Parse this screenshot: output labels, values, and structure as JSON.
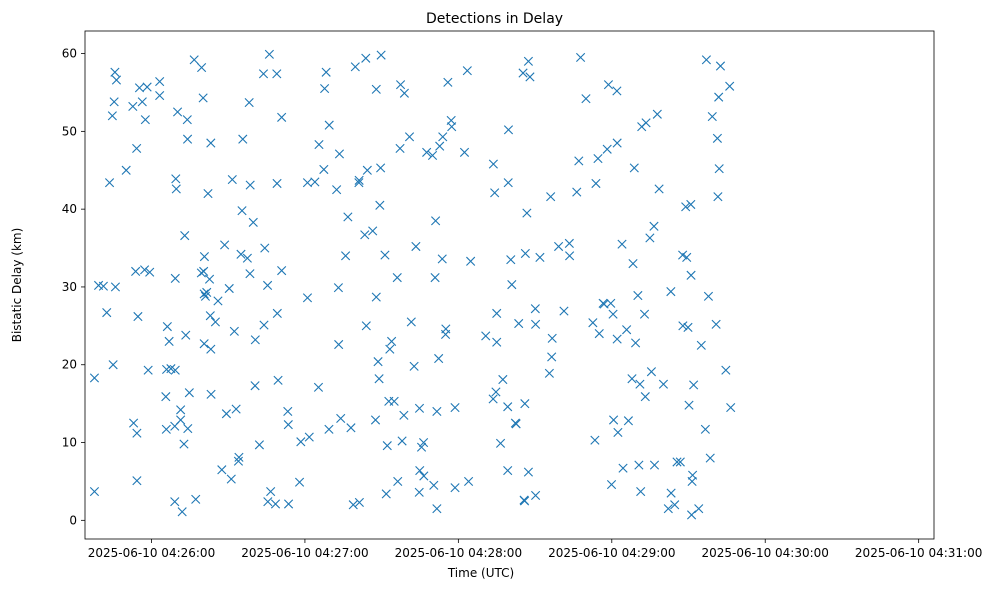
{
  "chart_data": {
    "type": "scatter",
    "title": "Detections in Delay",
    "xlabel": "Time (UTC)",
    "ylabel": "Bistatic Delay (km)",
    "xlim_seconds": [
      -26,
      306
    ],
    "ylim": [
      -2.4,
      62.9
    ],
    "grid": false,
    "legend": "none",
    "marker": "x",
    "series_color": "#1f77b4",
    "x_ticks": [
      {
        "t": 0,
        "label": "2025-06-10 04:26:00"
      },
      {
        "t": 60,
        "label": "2025-06-10 04:27:00"
      },
      {
        "t": 120,
        "label": "2025-06-10 04:28:00"
      },
      {
        "t": 180,
        "label": "2025-06-10 04:29:00"
      },
      {
        "t": 240,
        "label": "2025-06-10 04:30:00"
      },
      {
        "t": 300,
        "label": "2025-06-10 04:31:00"
      }
    ],
    "y_ticks": [
      0,
      10,
      20,
      30,
      40,
      50,
      60
    ],
    "x_unit": "seconds after 2025-06-10 04:26:00 UTC",
    "points": [
      [
        -22.3,
        18.3
      ],
      [
        -22.3,
        3.7
      ],
      [
        -20.7,
        30.2
      ],
      [
        -18.8,
        30.1
      ],
      [
        -17.5,
        26.7
      ],
      [
        -16.4,
        43.4
      ],
      [
        -15.3,
        52.0
      ],
      [
        -15.0,
        20.0
      ],
      [
        -14.6,
        53.8
      ],
      [
        -14.3,
        57.6
      ],
      [
        -14.1,
        30.0
      ],
      [
        -13.7,
        56.6
      ],
      [
        -9.9,
        45.0
      ],
      [
        -7.3,
        53.2
      ],
      [
        -7.0,
        12.5
      ],
      [
        -6.2,
        32.0
      ],
      [
        -5.8,
        47.8
      ],
      [
        -5.7,
        11.2
      ],
      [
        -5.7,
        5.1
      ],
      [
        -5.3,
        26.2
      ],
      [
        -4.7,
        55.6
      ],
      [
        -3.6,
        53.8
      ],
      [
        -2.7,
        32.2
      ],
      [
        -2.4,
        51.5
      ],
      [
        -1.7,
        55.7
      ],
      [
        -1.3,
        19.3
      ],
      [
        -0.7,
        31.9
      ],
      [
        3.2,
        56.4
      ],
      [
        3.2,
        54.6
      ],
      [
        5.6,
        15.9
      ],
      [
        5.8,
        11.7
      ],
      [
        5.9,
        19.4
      ],
      [
        6.2,
        24.9
      ],
      [
        6.9,
        23.0
      ],
      [
        7.6,
        19.5
      ],
      [
        9.1,
        12.1
      ],
      [
        9.1,
        2.4
      ],
      [
        9.3,
        31.1
      ],
      [
        9.3,
        19.3
      ],
      [
        9.5,
        43.9
      ],
      [
        9.7,
        42.6
      ],
      [
        10.2,
        52.5
      ],
      [
        11.4,
        12.9
      ],
      [
        11.4,
        14.2
      ],
      [
        12.0,
        1.1
      ],
      [
        12.7,
        9.8
      ],
      [
        13.0,
        36.6
      ],
      [
        13.4,
        23.8
      ],
      [
        14.0,
        51.5
      ],
      [
        14.1,
        49.0
      ],
      [
        14.2,
        11.8
      ],
      [
        14.8,
        16.4
      ],
      [
        16.7,
        59.2
      ],
      [
        17.3,
        2.7
      ],
      [
        19.5,
        31.8
      ],
      [
        19.6,
        58.2
      ],
      [
        20.2,
        54.3
      ],
      [
        20.4,
        32.0
      ],
      [
        20.6,
        22.7
      ],
      [
        20.6,
        29.1
      ],
      [
        20.7,
        33.9
      ],
      [
        21.1,
        28.8
      ],
      [
        21.6,
        29.3
      ],
      [
        22.1,
        42.0
      ],
      [
        22.7,
        31.0
      ],
      [
        23.0,
        26.3
      ],
      [
        23.2,
        48.5
      ],
      [
        23.2,
        22.0
      ],
      [
        23.3,
        16.2
      ],
      [
        25.0,
        25.5
      ],
      [
        26.0,
        28.2
      ],
      [
        27.5,
        6.5
      ],
      [
        28.6,
        35.4
      ],
      [
        29.3,
        13.7
      ],
      [
        30.4,
        29.8
      ],
      [
        31.2,
        5.3
      ],
      [
        31.6,
        43.8
      ],
      [
        32.4,
        24.3
      ],
      [
        33.1,
        14.3
      ],
      [
        34.0,
        7.6
      ],
      [
        34.2,
        8.1
      ],
      [
        35.0,
        34.2
      ],
      [
        35.4,
        39.8
      ],
      [
        35.7,
        49.0
      ],
      [
        37.5,
        33.7
      ],
      [
        38.2,
        53.7
      ],
      [
        38.5,
        31.7
      ],
      [
        38.6,
        43.1
      ],
      [
        39.8,
        38.3
      ],
      [
        40.5,
        17.3
      ],
      [
        40.6,
        23.2
      ],
      [
        42.2,
        9.7
      ],
      [
        43.8,
        57.4
      ],
      [
        44.0,
        25.1
      ],
      [
        44.3,
        35.0
      ],
      [
        45.4,
        30.2
      ],
      [
        45.5,
        2.4
      ],
      [
        46.1,
        59.9
      ],
      [
        46.6,
        3.7
      ],
      [
        48.5,
        2.1
      ],
      [
        49.0,
        57.4
      ],
      [
        49.1,
        43.3
      ],
      [
        49.2,
        26.6
      ],
      [
        49.5,
        18.0
      ],
      [
        50.9,
        32.1
      ],
      [
        50.9,
        51.8
      ],
      [
        53.3,
        14.0
      ],
      [
        53.5,
        12.3
      ],
      [
        53.6,
        2.1
      ],
      [
        57.9,
        4.9
      ],
      [
        58.4,
        10.1
      ],
      [
        61.0,
        28.6
      ],
      [
        61.0,
        43.4
      ],
      [
        61.7,
        10.7
      ],
      [
        63.9,
        43.5
      ],
      [
        65.3,
        17.1
      ],
      [
        65.5,
        48.3
      ],
      [
        67.4,
        45.1
      ],
      [
        67.7,
        55.5
      ],
      [
        68.3,
        57.6
      ],
      [
        69.4,
        11.7
      ],
      [
        69.5,
        50.8
      ],
      [
        72.4,
        42.5
      ],
      [
        73.1,
        29.9
      ],
      [
        73.2,
        22.6
      ],
      [
        73.5,
        47.1
      ],
      [
        74.0,
        13.1
      ],
      [
        75.9,
        34.0
      ],
      [
        76.8,
        39.0
      ],
      [
        78.0,
        11.9
      ],
      [
        78.9,
        2.0
      ],
      [
        79.7,
        58.3
      ],
      [
        81.1,
        43.4
      ],
      [
        81.2,
        43.7
      ],
      [
        81.3,
        2.3
      ],
      [
        83.4,
        36.7
      ],
      [
        83.8,
        59.4
      ],
      [
        84.0,
        25.0
      ],
      [
        84.4,
        45.0
      ],
      [
        86.5,
        37.2
      ],
      [
        87.6,
        12.9
      ],
      [
        87.9,
        55.4
      ],
      [
        87.9,
        28.7
      ],
      [
        88.6,
        20.4
      ],
      [
        89.0,
        18.2
      ],
      [
        89.3,
        40.5
      ],
      [
        89.6,
        45.3
      ],
      [
        89.8,
        59.8
      ],
      [
        91.3,
        34.1
      ],
      [
        91.8,
        3.4
      ],
      [
        92.2,
        9.6
      ],
      [
        92.8,
        15.3
      ],
      [
        93.2,
        22.0
      ],
      [
        93.9,
        23.0
      ],
      [
        94.9,
        15.3
      ],
      [
        96.1,
        31.2
      ],
      [
        96.3,
        5.0
      ],
      [
        97.2,
        47.8
      ],
      [
        97.4,
        56.0
      ],
      [
        98.0,
        10.2
      ],
      [
        98.7,
        13.5
      ],
      [
        98.9,
        54.9
      ],
      [
        100.9,
        49.3
      ],
      [
        101.6,
        25.5
      ],
      [
        102.7,
        19.8
      ],
      [
        103.4,
        35.2
      ],
      [
        104.7,
        3.6
      ],
      [
        104.8,
        14.4
      ],
      [
        104.9,
        6.4
      ],
      [
        105.6,
        9.4
      ],
      [
        106.4,
        10.0
      ],
      [
        106.5,
        5.7
      ],
      [
        107.6,
        47.3
      ],
      [
        109.9,
        46.9
      ],
      [
        110.4,
        4.5
      ],
      [
        110.9,
        31.2
      ],
      [
        111.1,
        38.5
      ],
      [
        111.6,
        14.0
      ],
      [
        111.6,
        1.5
      ],
      [
        112.3,
        20.8
      ],
      [
        112.7,
        48.1
      ],
      [
        113.7,
        33.6
      ],
      [
        113.9,
        49.3
      ],
      [
        115.0,
        23.9
      ],
      [
        115.1,
        24.6
      ],
      [
        115.9,
        56.3
      ],
      [
        117.2,
        51.4
      ],
      [
        117.4,
        50.6
      ],
      [
        118.7,
        14.5
      ],
      [
        118.7,
        4.2
      ],
      [
        122.4,
        47.3
      ],
      [
        123.5,
        57.8
      ],
      [
        124.0,
        5.0
      ],
      [
        124.8,
        33.3
      ],
      [
        130.7,
        23.7
      ],
      [
        133.6,
        15.6
      ],
      [
        133.7,
        45.8
      ],
      [
        134.2,
        42.1
      ],
      [
        134.7,
        16.5
      ],
      [
        135.0,
        26.6
      ],
      [
        135.0,
        22.9
      ],
      [
        136.5,
        9.9
      ],
      [
        137.4,
        18.1
      ],
      [
        139.3,
        14.6
      ],
      [
        139.3,
        6.4
      ],
      [
        139.5,
        43.4
      ],
      [
        139.6,
        50.2
      ],
      [
        140.5,
        33.5
      ],
      [
        140.9,
        30.3
      ],
      [
        142.3,
        12.5
      ],
      [
        142.6,
        12.4
      ],
      [
        143.6,
        25.3
      ],
      [
        145.3,
        57.5
      ],
      [
        145.7,
        2.6
      ],
      [
        145.9,
        2.5
      ],
      [
        146.0,
        15.0
      ],
      [
        146.2,
        34.3
      ],
      [
        146.8,
        39.5
      ],
      [
        147.4,
        59.0
      ],
      [
        147.4,
        6.2
      ],
      [
        148.0,
        57.0
      ],
      [
        150.1,
        27.2
      ],
      [
        150.2,
        25.2
      ],
      [
        150.2,
        3.2
      ],
      [
        151.9,
        33.8
      ],
      [
        155.6,
        18.9
      ],
      [
        156.1,
        41.6
      ],
      [
        156.5,
        21.0
      ],
      [
        156.7,
        23.4
      ],
      [
        159.2,
        35.2
      ],
      [
        161.3,
        26.9
      ],
      [
        163.4,
        35.6
      ],
      [
        163.5,
        34.0
      ],
      [
        166.3,
        42.2
      ],
      [
        167.1,
        46.2
      ],
      [
        167.8,
        59.5
      ],
      [
        169.9,
        54.2
      ],
      [
        172.6,
        25.4
      ],
      [
        173.4,
        10.3
      ],
      [
        173.8,
        43.3
      ],
      [
        174.6,
        46.5
      ],
      [
        175.1,
        24.0
      ],
      [
        176.6,
        27.9
      ],
      [
        177.0,
        27.8
      ],
      [
        178.2,
        47.7
      ],
      [
        178.7,
        56.0
      ],
      [
        179.6,
        27.9
      ],
      [
        179.9,
        4.6
      ],
      [
        180.5,
        26.5
      ],
      [
        180.7,
        12.9
      ],
      [
        182.0,
        55.2
      ],
      [
        182.1,
        48.5
      ],
      [
        182.1,
        23.3
      ],
      [
        182.4,
        11.3
      ],
      [
        184.0,
        35.5
      ],
      [
        184.4,
        6.7
      ],
      [
        185.8,
        24.5
      ],
      [
        186.5,
        12.8
      ],
      [
        187.9,
        18.2
      ],
      [
        188.3,
        33.0
      ],
      [
        188.8,
        45.3
      ],
      [
        189.3,
        22.8
      ],
      [
        190.2,
        28.9
      ],
      [
        190.6,
        7.1
      ],
      [
        191.0,
        17.5
      ],
      [
        191.3,
        3.7
      ],
      [
        191.7,
        50.6
      ],
      [
        192.8,
        26.5
      ],
      [
        193.1,
        15.9
      ],
      [
        193.4,
        51.1
      ],
      [
        194.9,
        36.3
      ],
      [
        195.5,
        19.1
      ],
      [
        196.5,
        37.8
      ],
      [
        196.7,
        7.1
      ],
      [
        197.8,
        52.2
      ],
      [
        198.5,
        42.6
      ],
      [
        200.2,
        17.5
      ],
      [
        202.1,
        1.5
      ],
      [
        203.1,
        29.4
      ],
      [
        203.2,
        3.5
      ],
      [
        204.6,
        2.0
      ],
      [
        205.5,
        7.5
      ],
      [
        206.8,
        7.5
      ],
      [
        207.7,
        34.1
      ],
      [
        207.8,
        25.0
      ],
      [
        208.9,
        40.3
      ],
      [
        209.3,
        33.8
      ],
      [
        209.8,
        24.8
      ],
      [
        210.2,
        14.8
      ],
      [
        210.9,
        40.6
      ],
      [
        211.0,
        31.5
      ],
      [
        211.2,
        0.7
      ],
      [
        211.4,
        5.0
      ],
      [
        211.6,
        5.8
      ],
      [
        212.0,
        17.4
      ],
      [
        214.0,
        1.5
      ],
      [
        215.0,
        22.5
      ],
      [
        216.6,
        11.7
      ],
      [
        217.0,
        59.2
      ],
      [
        217.8,
        28.8
      ],
      [
        218.5,
        8.0
      ],
      [
        219.3,
        51.9
      ],
      [
        220.8,
        25.2
      ],
      [
        221.3,
        49.1
      ],
      [
        221.5,
        41.6
      ],
      [
        221.8,
        54.4
      ],
      [
        222.0,
        45.2
      ],
      [
        222.5,
        58.4
      ],
      [
        224.6,
        19.3
      ],
      [
        226.1,
        55.8
      ],
      [
        226.5,
        14.5
      ]
    ]
  }
}
